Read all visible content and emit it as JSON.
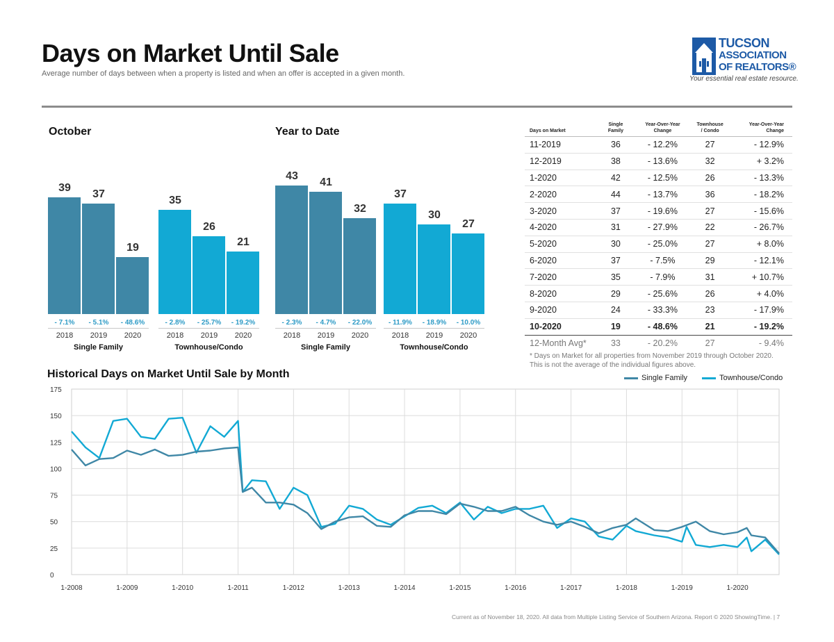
{
  "header": {
    "title": "Days on Market Until Sale",
    "subtitle": "Average number of days between when a property is listed and when an offer is accepted in a given month."
  },
  "logo": {
    "line1": "TUCSON",
    "line2": "ASSOCIATION",
    "line3": "OF REALTORS®",
    "tagline": "Your essential real estate resource."
  },
  "colors": {
    "single_family": "#3f87a6",
    "townhouse": "#12a9d4",
    "negative_pct": "#2e9bc6",
    "logo_blue": "#1d5aa6"
  },
  "october": {
    "label": "October",
    "groups": [
      {
        "name": "Single Family",
        "bars": [
          {
            "year": "2018",
            "value": 39,
            "change": "- 7.1%"
          },
          {
            "year": "2019",
            "value": 37,
            "change": "- 5.1%"
          },
          {
            "year": "2020",
            "value": 19,
            "change": "- 48.6%"
          }
        ]
      },
      {
        "name": "Townhouse/Condo",
        "bars": [
          {
            "year": "2018",
            "value": 35,
            "change": "- 2.8%"
          },
          {
            "year": "2019",
            "value": 26,
            "change": "- 25.7%"
          },
          {
            "year": "2020",
            "value": 21,
            "change": "- 19.2%"
          }
        ]
      }
    ]
  },
  "ytd": {
    "label": "Year to Date",
    "groups": [
      {
        "name": "Single Family",
        "bars": [
          {
            "year": "2018",
            "value": 43,
            "change": "- 2.3%"
          },
          {
            "year": "2019",
            "value": 41,
            "change": "- 4.7%"
          },
          {
            "year": "2020",
            "value": 32,
            "change": "- 22.0%"
          }
        ]
      },
      {
        "name": "Townhouse/Condo",
        "bars": [
          {
            "year": "2018",
            "value": 37,
            "change": "- 11.9%"
          },
          {
            "year": "2019",
            "value": 30,
            "change": "- 18.9%"
          },
          {
            "year": "2020",
            "value": 27,
            "change": "- 10.0%"
          }
        ]
      }
    ]
  },
  "table": {
    "headers": [
      "Days on Market",
      "Single\nFamily",
      "Year-Over-Year\nChange",
      "Townhouse\n/ Condo",
      "Year-Over-Year\nChange"
    ],
    "rows": [
      [
        "11-2019",
        "36",
        "- 12.2%",
        "27",
        "- 12.9%"
      ],
      [
        "12-2019",
        "38",
        "- 13.6%",
        "32",
        "+ 3.2%"
      ],
      [
        "1-2020",
        "42",
        "- 12.5%",
        "26",
        "- 13.3%"
      ],
      [
        "2-2020",
        "44",
        "- 13.7%",
        "36",
        "- 18.2%"
      ],
      [
        "3-2020",
        "37",
        "- 19.6%",
        "27",
        "- 15.6%"
      ],
      [
        "4-2020",
        "31",
        "- 27.9%",
        "22",
        "- 26.7%"
      ],
      [
        "5-2020",
        "30",
        "- 25.0%",
        "27",
        "+ 8.0%"
      ],
      [
        "6-2020",
        "37",
        "- 7.5%",
        "29",
        "- 12.1%"
      ],
      [
        "7-2020",
        "35",
        "- 7.9%",
        "31",
        "+ 10.7%"
      ],
      [
        "8-2020",
        "29",
        "- 25.6%",
        "26",
        "+ 4.0%"
      ],
      [
        "9-2020",
        "24",
        "- 33.3%",
        "23",
        "- 17.9%"
      ],
      [
        "10-2020",
        "19",
        "- 48.6%",
        "21",
        "- 19.2%"
      ]
    ],
    "avg_row": [
      "12-Month Avg*",
      "33",
      "- 20.2%",
      "27",
      "- 9.4%"
    ],
    "note": "* Days on Market for all properties from November 2019 through October 2020. This is not the average of the individual figures above."
  },
  "historical": {
    "title": "Historical Days on Market Until Sale by Month",
    "legend": [
      "Single Family",
      "Townhouse/Condo"
    ]
  },
  "footer": {
    "text": "Current as of November 18, 2020. All data from Multiple Listing Service of Southern Arizona. Report © 2020 ShowingTime.  |  7"
  },
  "chart_data": [
    {
      "type": "bar",
      "title": "October",
      "categories": [
        "2018",
        "2019",
        "2020"
      ],
      "series": [
        {
          "name": "Single Family",
          "values": [
            39,
            37,
            19
          ]
        },
        {
          "name": "Townhouse/Condo",
          "values": [
            35,
            26,
            21
          ]
        }
      ]
    },
    {
      "type": "bar",
      "title": "Year to Date",
      "categories": [
        "2018",
        "2019",
        "2020"
      ],
      "series": [
        {
          "name": "Single Family",
          "values": [
            43,
            41,
            32
          ]
        },
        {
          "name": "Townhouse/Condo",
          "values": [
            37,
            30,
            27
          ]
        }
      ]
    },
    {
      "type": "line",
      "title": "Historical Days on Market Until Sale by Month",
      "x_ticks": [
        "1-2008",
        "1-2009",
        "1-2010",
        "1-2011",
        "1-2012",
        "1-2013",
        "1-2014",
        "1-2015",
        "1-2016",
        "1-2017",
        "1-2018",
        "1-2019",
        "1-2020"
      ],
      "y_ticks": [
        0,
        25,
        50,
        75,
        100,
        125,
        150,
        175
      ],
      "ylim": [
        0,
        175
      ],
      "x_start": "1-2008",
      "x_end": "10-2020",
      "grid": true,
      "legend_position": "top-right",
      "series": [
        {
          "name": "Single Family",
          "points": [
            [
              2008.0,
              118
            ],
            [
              2008.25,
              103
            ],
            [
              2008.5,
              109
            ],
            [
              2008.75,
              110
            ],
            [
              2009.0,
              117
            ],
            [
              2009.25,
              113
            ],
            [
              2009.5,
              118
            ],
            [
              2009.75,
              112
            ],
            [
              2010.0,
              113
            ],
            [
              2010.25,
              116
            ],
            [
              2010.5,
              117
            ],
            [
              2010.75,
              119
            ],
            [
              2011.0,
              120
            ],
            [
              2011.083,
              78
            ],
            [
              2011.25,
              82
            ],
            [
              2011.5,
              68
            ],
            [
              2011.75,
              68
            ],
            [
              2012.0,
              66
            ],
            [
              2012.25,
              58
            ],
            [
              2012.5,
              43
            ],
            [
              2012.75,
              50
            ],
            [
              2013.0,
              54
            ],
            [
              2013.25,
              55
            ],
            [
              2013.5,
              46
            ],
            [
              2013.75,
              45
            ],
            [
              2014.0,
              56
            ],
            [
              2014.25,
              60
            ],
            [
              2014.5,
              60
            ],
            [
              2014.75,
              57
            ],
            [
              2015.0,
              67
            ],
            [
              2015.25,
              64
            ],
            [
              2015.5,
              60
            ],
            [
              2015.75,
              60
            ],
            [
              2016.0,
              64
            ],
            [
              2016.25,
              56
            ],
            [
              2016.5,
              50
            ],
            [
              2016.75,
              47
            ],
            [
              2017.0,
              50
            ],
            [
              2017.25,
              45
            ],
            [
              2017.5,
              39
            ],
            [
              2017.75,
              44
            ],
            [
              2018.0,
              47
            ],
            [
              2018.167,
              53
            ],
            [
              2018.5,
              42
            ],
            [
              2018.75,
              41
            ],
            [
              2019.0,
              45
            ],
            [
              2019.25,
              50
            ],
            [
              2019.5,
              41
            ],
            [
              2019.75,
              38
            ],
            [
              2020.0,
              40
            ],
            [
              2020.167,
              44
            ],
            [
              2020.25,
              37
            ],
            [
              2020.5,
              35
            ],
            [
              2020.75,
              20
            ]
          ]
        },
        {
          "name": "Townhouse/Condo",
          "points": [
            [
              2008.0,
              135
            ],
            [
              2008.25,
              120
            ],
            [
              2008.5,
              110
            ],
            [
              2008.75,
              145
            ],
            [
              2009.0,
              147
            ],
            [
              2009.25,
              130
            ],
            [
              2009.5,
              128
            ],
            [
              2009.75,
              147
            ],
            [
              2010.0,
              148
            ],
            [
              2010.25,
              115
            ],
            [
              2010.5,
              140
            ],
            [
              2010.75,
              130
            ],
            [
              2011.0,
              145
            ],
            [
              2011.083,
              78
            ],
            [
              2011.25,
              89
            ],
            [
              2011.5,
              88
            ],
            [
              2011.75,
              62
            ],
            [
              2012.0,
              82
            ],
            [
              2012.25,
              75
            ],
            [
              2012.5,
              45
            ],
            [
              2012.75,
              48
            ],
            [
              2013.0,
              65
            ],
            [
              2013.25,
              62
            ],
            [
              2013.5,
              52
            ],
            [
              2013.75,
              47
            ],
            [
              2014.0,
              55
            ],
            [
              2014.25,
              63
            ],
            [
              2014.5,
              65
            ],
            [
              2014.75,
              58
            ],
            [
              2015.0,
              68
            ],
            [
              2015.25,
              52
            ],
            [
              2015.5,
              64
            ],
            [
              2015.75,
              58
            ],
            [
              2016.0,
              62
            ],
            [
              2016.25,
              62
            ],
            [
              2016.5,
              65
            ],
            [
              2016.75,
              44
            ],
            [
              2017.0,
              53
            ],
            [
              2017.25,
              50
            ],
            [
              2017.5,
              36
            ],
            [
              2017.75,
              33
            ],
            [
              2018.0,
              46
            ],
            [
              2018.167,
              41
            ],
            [
              2018.5,
              37
            ],
            [
              2018.75,
              35
            ],
            [
              2019.0,
              31
            ],
            [
              2019.083,
              45
            ],
            [
              2019.25,
              28
            ],
            [
              2019.5,
              26
            ],
            [
              2019.75,
              28
            ],
            [
              2020.0,
              26
            ],
            [
              2020.167,
              35
            ],
            [
              2020.25,
              22
            ],
            [
              2020.5,
              33
            ],
            [
              2020.75,
              19
            ]
          ]
        }
      ]
    }
  ]
}
